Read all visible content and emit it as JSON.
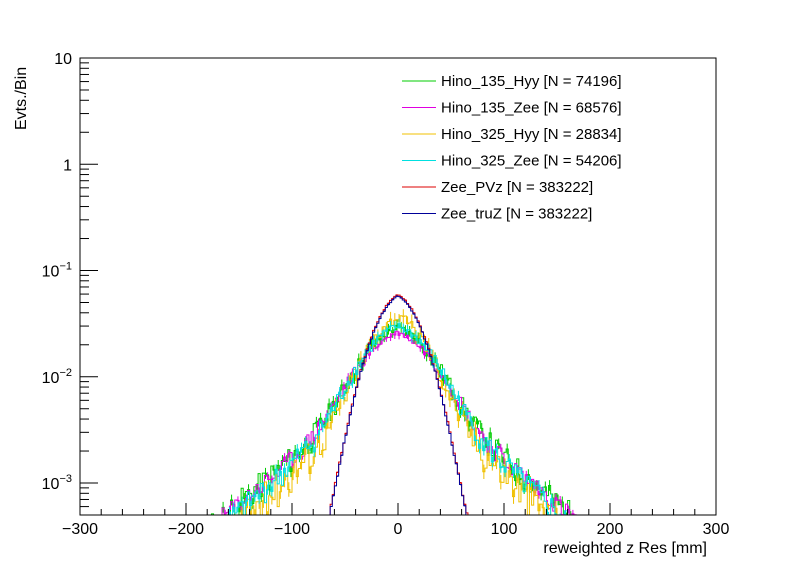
{
  "chart_data": {
    "type": "line",
    "style": "step-histogram",
    "title": "",
    "xlabel": "reweighted z Res [mm]",
    "ylabel": "Evts./Bin",
    "xlim": [
      -300,
      300
    ],
    "ylim": [
      0.0005,
      10
    ],
    "yscale": "log",
    "x_ticks": [
      {
        "value": -300,
        "label": "−300"
      },
      {
        "value": -200,
        "label": "−200"
      },
      {
        "value": -100,
        "label": "−100"
      },
      {
        "value": 0,
        "label": "0"
      },
      {
        "value": 100,
        "label": "100"
      },
      {
        "value": 200,
        "label": "200"
      },
      {
        "value": 300,
        "label": "300"
      }
    ],
    "y_ticks": [
      {
        "value": 0.001,
        "base": "10",
        "exp": "−3"
      },
      {
        "value": 0.01,
        "base": "10",
        "exp": "−2"
      },
      {
        "value": 0.1,
        "base": "10",
        "exp": "−1"
      },
      {
        "value": 1,
        "base": "1",
        "exp": ""
      },
      {
        "value": 10,
        "base": "10",
        "exp": ""
      }
    ],
    "legend_position": "top-right",
    "bin_width": 2,
    "series": [
      {
        "name": "Hino_135_Hyy [N = 74196]",
        "color": "#00cc00",
        "peak": 0.029,
        "a1": 0.6,
        "w1": 28,
        "w2": 115,
        "noise": 0.3,
        "seed": 11
      },
      {
        "name": "Hino_135_Zee [N = 68576]",
        "color": "#e000e0",
        "peak": 0.026,
        "a1": 0.6,
        "w1": 30,
        "w2": 118,
        "noise": 0.22,
        "seed": 23
      },
      {
        "name": "Hino_325_Hyy [N = 28834]",
        "color": "#f0c000",
        "peak": 0.036,
        "a1": 0.68,
        "w1": 24,
        "w2": 100,
        "noise": 0.4,
        "seed": 37
      },
      {
        "name": "Hino_325_Zee [N = 54206]",
        "color": "#00e0e0",
        "peak": 0.03,
        "a1": 0.62,
        "w1": 28,
        "w2": 108,
        "noise": 0.28,
        "seed": 41
      },
      {
        "name": "Zee_PVz [N = 383222]",
        "color": "#dd0000",
        "peak": 0.06,
        "a1": 0.75,
        "w1": 20,
        "w2": 36,
        "noise": 0.04,
        "seed": 53
      },
      {
        "name": "Zee_truZ [N = 383222]",
        "color": "#000099",
        "peak": 0.058,
        "a1": 0.75,
        "w1": 20,
        "w2": 36,
        "noise": 0.04,
        "seed": 67
      }
    ]
  }
}
